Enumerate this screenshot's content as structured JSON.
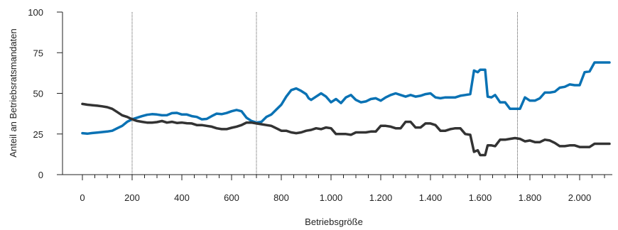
{
  "chart_data": {
    "type": "line",
    "xlabel": "Betriebsgröße",
    "ylabel": "Anteil an Betriebsratsmandaten",
    "xlim": [
      0,
      2140
    ],
    "ylim": [
      0,
      100
    ],
    "xticks": [
      {
        "value": 0,
        "label": "0"
      },
      {
        "value": 200,
        "label": "200"
      },
      {
        "value": 400,
        "label": "400"
      },
      {
        "value": 600,
        "label": "600"
      },
      {
        "value": 800,
        "label": "800"
      },
      {
        "value": 1000,
        "label": "1.000"
      },
      {
        "value": 1200,
        "label": "1.200"
      },
      {
        "value": 1400,
        "label": "1.400"
      },
      {
        "value": 1600,
        "label": "1.600"
      },
      {
        "value": 1800,
        "label": "1.800"
      },
      {
        "value": 2000,
        "label": "2.000"
      }
    ],
    "yticks": [
      {
        "value": 0,
        "label": "0"
      },
      {
        "value": 25,
        "label": "25"
      },
      {
        "value": 50,
        "label": "50"
      },
      {
        "value": 75,
        "label": "75"
      },
      {
        "value": 100,
        "label": "100"
      }
    ],
    "reference_lines_x": [
      200,
      700,
      1750
    ],
    "series": [
      {
        "color": "#0a72b4",
        "points": [
          [
            0,
            25.5
          ],
          [
            20,
            25.2
          ],
          [
            40,
            25.6
          ],
          [
            60,
            25.9
          ],
          [
            80,
            26.2
          ],
          [
            100,
            26.5
          ],
          [
            120,
            27.0
          ],
          [
            140,
            28.5
          ],
          [
            160,
            30.0
          ],
          [
            180,
            32.5
          ],
          [
            200,
            34.0
          ],
          [
            220,
            35.0
          ],
          [
            240,
            36.0
          ],
          [
            260,
            36.8
          ],
          [
            280,
            37.2
          ],
          [
            300,
            37.0
          ],
          [
            320,
            36.5
          ],
          [
            340,
            36.6
          ],
          [
            360,
            37.8
          ],
          [
            380,
            38.0
          ],
          [
            400,
            37.0
          ],
          [
            420,
            37.0
          ],
          [
            440,
            36.0
          ],
          [
            460,
            35.5
          ],
          [
            480,
            34.0
          ],
          [
            500,
            34.3
          ],
          [
            520,
            36.0
          ],
          [
            540,
            37.5
          ],
          [
            560,
            37.2
          ],
          [
            580,
            37.9
          ],
          [
            600,
            39.0
          ],
          [
            620,
            39.8
          ],
          [
            640,
            39.0
          ],
          [
            660,
            35.0
          ],
          [
            680,
            33.0
          ],
          [
            700,
            32.0
          ],
          [
            720,
            32.5
          ],
          [
            740,
            35.5
          ],
          [
            760,
            37.0
          ],
          [
            780,
            40.0
          ],
          [
            800,
            43.0
          ],
          [
            820,
            48.0
          ],
          [
            840,
            52.0
          ],
          [
            860,
            53.0
          ],
          [
            880,
            51.5
          ],
          [
            900,
            49.5
          ],
          [
            910,
            47.0
          ],
          [
            920,
            46.0
          ],
          [
            940,
            48.0
          ],
          [
            960,
            50.0
          ],
          [
            980,
            48.0
          ],
          [
            1000,
            44.5
          ],
          [
            1020,
            46.5
          ],
          [
            1040,
            44.0
          ],
          [
            1060,
            47.5
          ],
          [
            1080,
            49.0
          ],
          [
            1100,
            46.0
          ],
          [
            1120,
            44.5
          ],
          [
            1140,
            45.0
          ],
          [
            1160,
            46.5
          ],
          [
            1180,
            47.0
          ],
          [
            1200,
            45.5
          ],
          [
            1220,
            47.5
          ],
          [
            1240,
            49.0
          ],
          [
            1260,
            50.0
          ],
          [
            1280,
            49.0
          ],
          [
            1300,
            48.0
          ],
          [
            1320,
            49.0
          ],
          [
            1340,
            48.0
          ],
          [
            1360,
            48.5
          ],
          [
            1380,
            49.5
          ],
          [
            1400,
            50.0
          ],
          [
            1420,
            47.5
          ],
          [
            1440,
            47.0
          ],
          [
            1460,
            47.5
          ],
          [
            1480,
            47.5
          ],
          [
            1500,
            47.5
          ],
          [
            1520,
            48.5
          ],
          [
            1540,
            49.0
          ],
          [
            1560,
            49.5
          ],
          [
            1575,
            64.0
          ],
          [
            1590,
            63.0
          ],
          [
            1600,
            64.5
          ],
          [
            1620,
            64.5
          ],
          [
            1630,
            48.0
          ],
          [
            1645,
            47.5
          ],
          [
            1660,
            49.0
          ],
          [
            1680,
            44.5
          ],
          [
            1700,
            44.5
          ],
          [
            1720,
            40.5
          ],
          [
            1740,
            40.5
          ],
          [
            1760,
            40.5
          ],
          [
            1780,
            47.5
          ],
          [
            1800,
            45.5
          ],
          [
            1820,
            45.5
          ],
          [
            1840,
            47.0
          ],
          [
            1860,
            50.5
          ],
          [
            1880,
            50.5
          ],
          [
            1900,
            51.0
          ],
          [
            1920,
            53.5
          ],
          [
            1940,
            54.0
          ],
          [
            1960,
            55.5
          ],
          [
            1980,
            55.0
          ],
          [
            2000,
            55.0
          ],
          [
            2020,
            63.0
          ],
          [
            2040,
            63.5
          ],
          [
            2060,
            69.0
          ],
          [
            2080,
            69.0
          ],
          [
            2100,
            69.0
          ],
          [
            2120,
            69.0
          ]
        ]
      },
      {
        "color": "#333333",
        "points": [
          [
            0,
            43.5
          ],
          [
            20,
            43.0
          ],
          [
            40,
            42.7
          ],
          [
            60,
            42.4
          ],
          [
            80,
            42.0
          ],
          [
            100,
            41.5
          ],
          [
            120,
            40.5
          ],
          [
            140,
            38.5
          ],
          [
            160,
            36.5
          ],
          [
            180,
            35.5
          ],
          [
            200,
            34.0
          ],
          [
            220,
            33.0
          ],
          [
            240,
            32.5
          ],
          [
            260,
            32.0
          ],
          [
            280,
            32.0
          ],
          [
            300,
            32.3
          ],
          [
            320,
            33.0
          ],
          [
            340,
            32.0
          ],
          [
            360,
            32.5
          ],
          [
            380,
            31.8
          ],
          [
            400,
            32.0
          ],
          [
            420,
            31.6
          ],
          [
            440,
            31.5
          ],
          [
            460,
            30.5
          ],
          [
            480,
            30.5
          ],
          [
            500,
            30.0
          ],
          [
            520,
            29.5
          ],
          [
            540,
            28.5
          ],
          [
            560,
            28.0
          ],
          [
            580,
            28.0
          ],
          [
            600,
            28.8
          ],
          [
            620,
            29.5
          ],
          [
            640,
            30.5
          ],
          [
            660,
            32.0
          ],
          [
            680,
            32.0
          ],
          [
            700,
            31.5
          ],
          [
            720,
            31.0
          ],
          [
            740,
            30.5
          ],
          [
            760,
            30.0
          ],
          [
            780,
            28.5
          ],
          [
            800,
            27.0
          ],
          [
            820,
            27.0
          ],
          [
            840,
            26.0
          ],
          [
            860,
            25.5
          ],
          [
            880,
            26.0
          ],
          [
            900,
            27.0
          ],
          [
            920,
            27.5
          ],
          [
            940,
            28.5
          ],
          [
            960,
            28.0
          ],
          [
            980,
            29.0
          ],
          [
            1000,
            28.5
          ],
          [
            1020,
            25.0
          ],
          [
            1040,
            25.0
          ],
          [
            1060,
            25.0
          ],
          [
            1080,
            24.5
          ],
          [
            1100,
            26.0
          ],
          [
            1120,
            26.0
          ],
          [
            1140,
            26.0
          ],
          [
            1160,
            26.5
          ],
          [
            1180,
            26.5
          ],
          [
            1200,
            30.0
          ],
          [
            1220,
            30.0
          ],
          [
            1240,
            29.5
          ],
          [
            1260,
            28.5
          ],
          [
            1280,
            28.5
          ],
          [
            1300,
            32.5
          ],
          [
            1320,
            32.5
          ],
          [
            1340,
            29.0
          ],
          [
            1360,
            29.0
          ],
          [
            1380,
            31.5
          ],
          [
            1400,
            31.5
          ],
          [
            1420,
            30.5
          ],
          [
            1440,
            27.0
          ],
          [
            1460,
            27.0
          ],
          [
            1480,
            28.0
          ],
          [
            1500,
            28.5
          ],
          [
            1520,
            28.5
          ],
          [
            1540,
            25.0
          ],
          [
            1560,
            24.5
          ],
          [
            1575,
            14.0
          ],
          [
            1590,
            15.0
          ],
          [
            1600,
            12.0
          ],
          [
            1620,
            12.0
          ],
          [
            1630,
            18.0
          ],
          [
            1645,
            18.0
          ],
          [
            1660,
            17.5
          ],
          [
            1680,
            21.5
          ],
          [
            1700,
            21.5
          ],
          [
            1720,
            22.0
          ],
          [
            1740,
            22.5
          ],
          [
            1760,
            22.0
          ],
          [
            1780,
            20.5
          ],
          [
            1800,
            21.0
          ],
          [
            1820,
            20.0
          ],
          [
            1840,
            20.0
          ],
          [
            1860,
            21.5
          ],
          [
            1880,
            21.0
          ],
          [
            1900,
            19.5
          ],
          [
            1920,
            17.5
          ],
          [
            1940,
            17.5
          ],
          [
            1960,
            18.0
          ],
          [
            1980,
            18.0
          ],
          [
            2000,
            17.0
          ],
          [
            2020,
            17.0
          ],
          [
            2040,
            17.0
          ],
          [
            2060,
            19.0
          ],
          [
            2080,
            19.0
          ],
          [
            2100,
            19.0
          ],
          [
            2120,
            19.0
          ]
        ]
      }
    ]
  }
}
